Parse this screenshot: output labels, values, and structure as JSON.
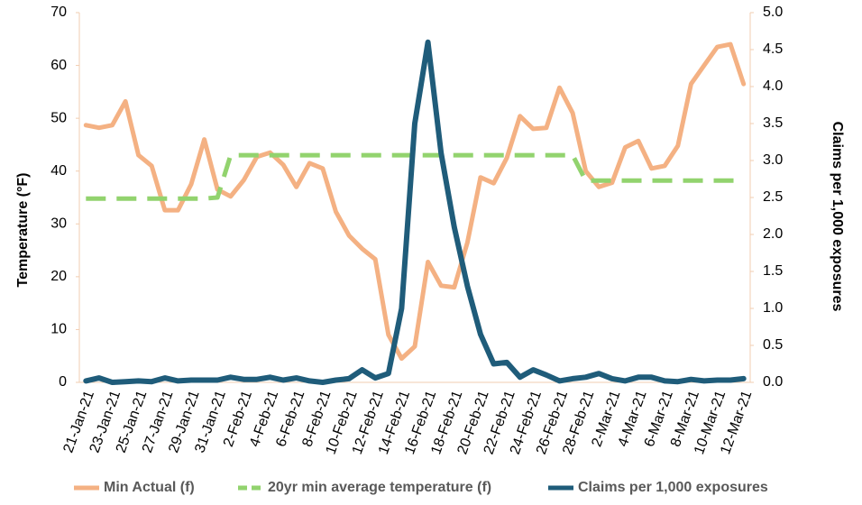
{
  "chart_data": {
    "type": "line",
    "categories": [
      "21-Jan-21",
      null,
      "23-Jan-21",
      null,
      "25-Jan-21",
      null,
      "27-Jan-21",
      null,
      "29-Jan-21",
      null,
      "31-Jan-21",
      null,
      "2-Feb-21",
      null,
      "4-Feb-21",
      null,
      "6-Feb-21",
      null,
      "8-Feb-21",
      null,
      "10-Feb-21",
      null,
      "12-Feb-21",
      null,
      "14-Feb-21",
      null,
      "16-Feb-21",
      null,
      "18-Feb-21",
      null,
      "20-Feb-21",
      null,
      "22-Feb-21",
      null,
      "24-Feb-21",
      null,
      "26-Feb-21",
      null,
      "28-Feb-21",
      null,
      "2-Mar-21",
      null,
      "4-Mar-21",
      null,
      "6-Mar-21",
      null,
      "8-Mar-21",
      null,
      "10-Mar-21",
      null,
      "12-Mar-21"
    ],
    "y_label": "Temperature (°F)",
    "y2_label": "Claims per 1,000 exposures",
    "ylim": [
      0,
      70
    ],
    "yticks": [
      0,
      10,
      20,
      30,
      40,
      50,
      60,
      70
    ],
    "y2lim": [
      0,
      5
    ],
    "y2ticks": [
      {
        "value": 0,
        "label": "0.0"
      },
      0.5,
      {
        "value": 1,
        "label": "1.0"
      },
      1.5,
      {
        "value": 2,
        "label": "2.0"
      },
      2.5,
      {
        "value": 3,
        "label": "3.0"
      },
      3.5,
      {
        "value": 4,
        "label": "4.0"
      },
      4.5,
      {
        "value": 5,
        "label": "5.0"
      }
    ],
    "grid": false,
    "legend": "bottom",
    "series": [
      {
        "name": "Min Actual (f)",
        "color": "#f4b183",
        "dashed": false,
        "values": [
          48.7,
          48.2,
          48.7,
          53.2,
          43,
          41,
          32.6,
          32.6,
          37.5,
          46,
          36.5,
          35.2,
          38.3,
          42.7,
          43.5,
          41.2,
          37,
          41.5,
          40.5,
          32.3,
          27.8,
          25.3,
          23.3,
          9,
          4.5,
          6.8,
          22.8,
          18.3,
          18,
          26.5,
          38.8,
          37.7,
          42.5,
          50.4,
          48,
          48.2,
          55.8,
          51,
          40,
          37,
          37.8,
          44.5,
          45.7,
          40.5,
          41,
          44.8,
          56.5,
          60,
          63.5,
          64,
          56.5
        ]
      },
      {
        "name": "20yr min average temperature (f)",
        "color": "#92d36e",
        "dashed": true,
        "values": [
          34.8,
          34.8,
          34.8,
          34.8,
          34.8,
          34.8,
          34.8,
          34.8,
          34.8,
          34.8,
          35,
          43,
          43,
          43,
          43,
          43,
          43,
          43,
          43,
          43,
          43,
          43,
          43,
          43,
          43,
          43,
          43,
          43,
          43,
          43,
          43,
          43,
          43,
          43,
          43,
          43,
          43,
          43,
          38.2,
          38.2,
          38.2,
          38.2,
          38.2,
          38.2,
          38.2,
          38.2,
          38.2,
          38.2,
          38.2,
          38.2,
          38.2
        ]
      },
      {
        "name": "Claims per 1,000 exposures",
        "color": "#1f5c7a",
        "dashed": false,
        "axis": "y2",
        "values": [
          0.02,
          0.06,
          0,
          0.01,
          0.02,
          0.01,
          0.06,
          0.02,
          0.03,
          0.03,
          0.03,
          0.07,
          0.04,
          0.04,
          0.07,
          0.03,
          0.06,
          0.02,
          0,
          0.03,
          0.05,
          0.17,
          0.06,
          0.12,
          1.0,
          3.5,
          4.6,
          3.1,
          2.1,
          1.3,
          0.65,
          0.25,
          0.27,
          0.07,
          0.17,
          0.1,
          0.02,
          0.05,
          0.07,
          0.12,
          0.05,
          0.02,
          0.07,
          0.07,
          0.02,
          0.01,
          0.04,
          0.02,
          0.03,
          0.03,
          0.05
        ]
      }
    ]
  }
}
